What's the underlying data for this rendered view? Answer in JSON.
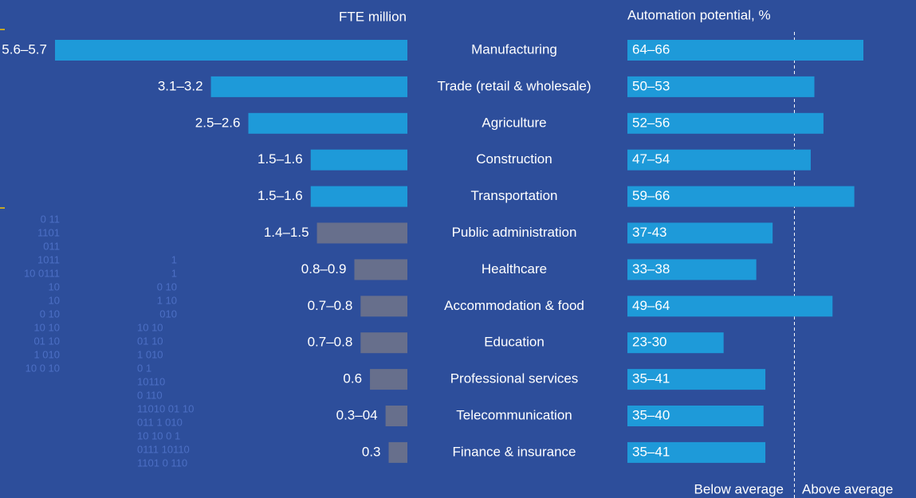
{
  "chart_data": [
    {
      "type": "bar",
      "orientation": "leftward",
      "title": "FTE million",
      "categories": [
        "Manufacturing",
        "Trade (retail & wholesale)",
        "Agriculture",
        "Construction",
        "Transportation",
        "Public administration",
        "Healthcare",
        "Accommodation & food",
        "Education",
        "Professional services",
        "Telecommunication",
        "Finance & insurance"
      ],
      "values": [
        5.65,
        3.15,
        2.55,
        1.55,
        1.55,
        1.45,
        0.85,
        0.75,
        0.75,
        0.6,
        0.35,
        0.3
      ],
      "value_labels": [
        "5.6–5.7",
        "3.1–3.2",
        "2.5–2.6",
        "1.5–1.6",
        "1.5–1.6",
        "1.4–1.5",
        "0.8–0.9",
        "0.7–0.8",
        "0.7–0.8",
        "0.6",
        "0.3–04",
        "0.3"
      ],
      "colors": [
        "#1e9ad9",
        "#1e9ad9",
        "#1e9ad9",
        "#1e9ad9",
        "#1e9ad9",
        "#676f8c",
        "#676f8c",
        "#676f8c",
        "#676f8c",
        "#676f8c",
        "#676f8c",
        "#676f8c"
      ]
    },
    {
      "type": "bar",
      "orientation": "rightward",
      "title": "Automation potential, %",
      "values": [
        65,
        51.5,
        54,
        50.5,
        62.5,
        40,
        35.5,
        56.5,
        26.5,
        38,
        37.5,
        38
      ],
      "value_labels": [
        "64–66",
        "50–53",
        "52–56",
        "47–54",
        "59–66",
        "37-43",
        "33–38",
        "49–64",
        "23-30",
        "35–41",
        "35–40",
        "35–41"
      ],
      "color": "#1e9ad9",
      "average": 46,
      "annotations": [
        "Below average",
        "Above average"
      ]
    }
  ],
  "decoration": [
    [
      "0  11",
      "1101",
      "011",
      "1011",
      "10 0111",
      "10",
      "10",
      "0 10",
      "10  10",
      "01  10",
      "1  010",
      "10   0  10"
    ],
    [
      "1",
      "1",
      "0  10",
      "1  10",
      "010",
      "10  10",
      "01  10",
      "1  010",
      "0  1",
      "10110",
      "0  110",
      "11010 01  10",
      "011   1  010",
      "10  10   0  1",
      "0111  10110",
      "1101   0  110"
    ]
  ]
}
